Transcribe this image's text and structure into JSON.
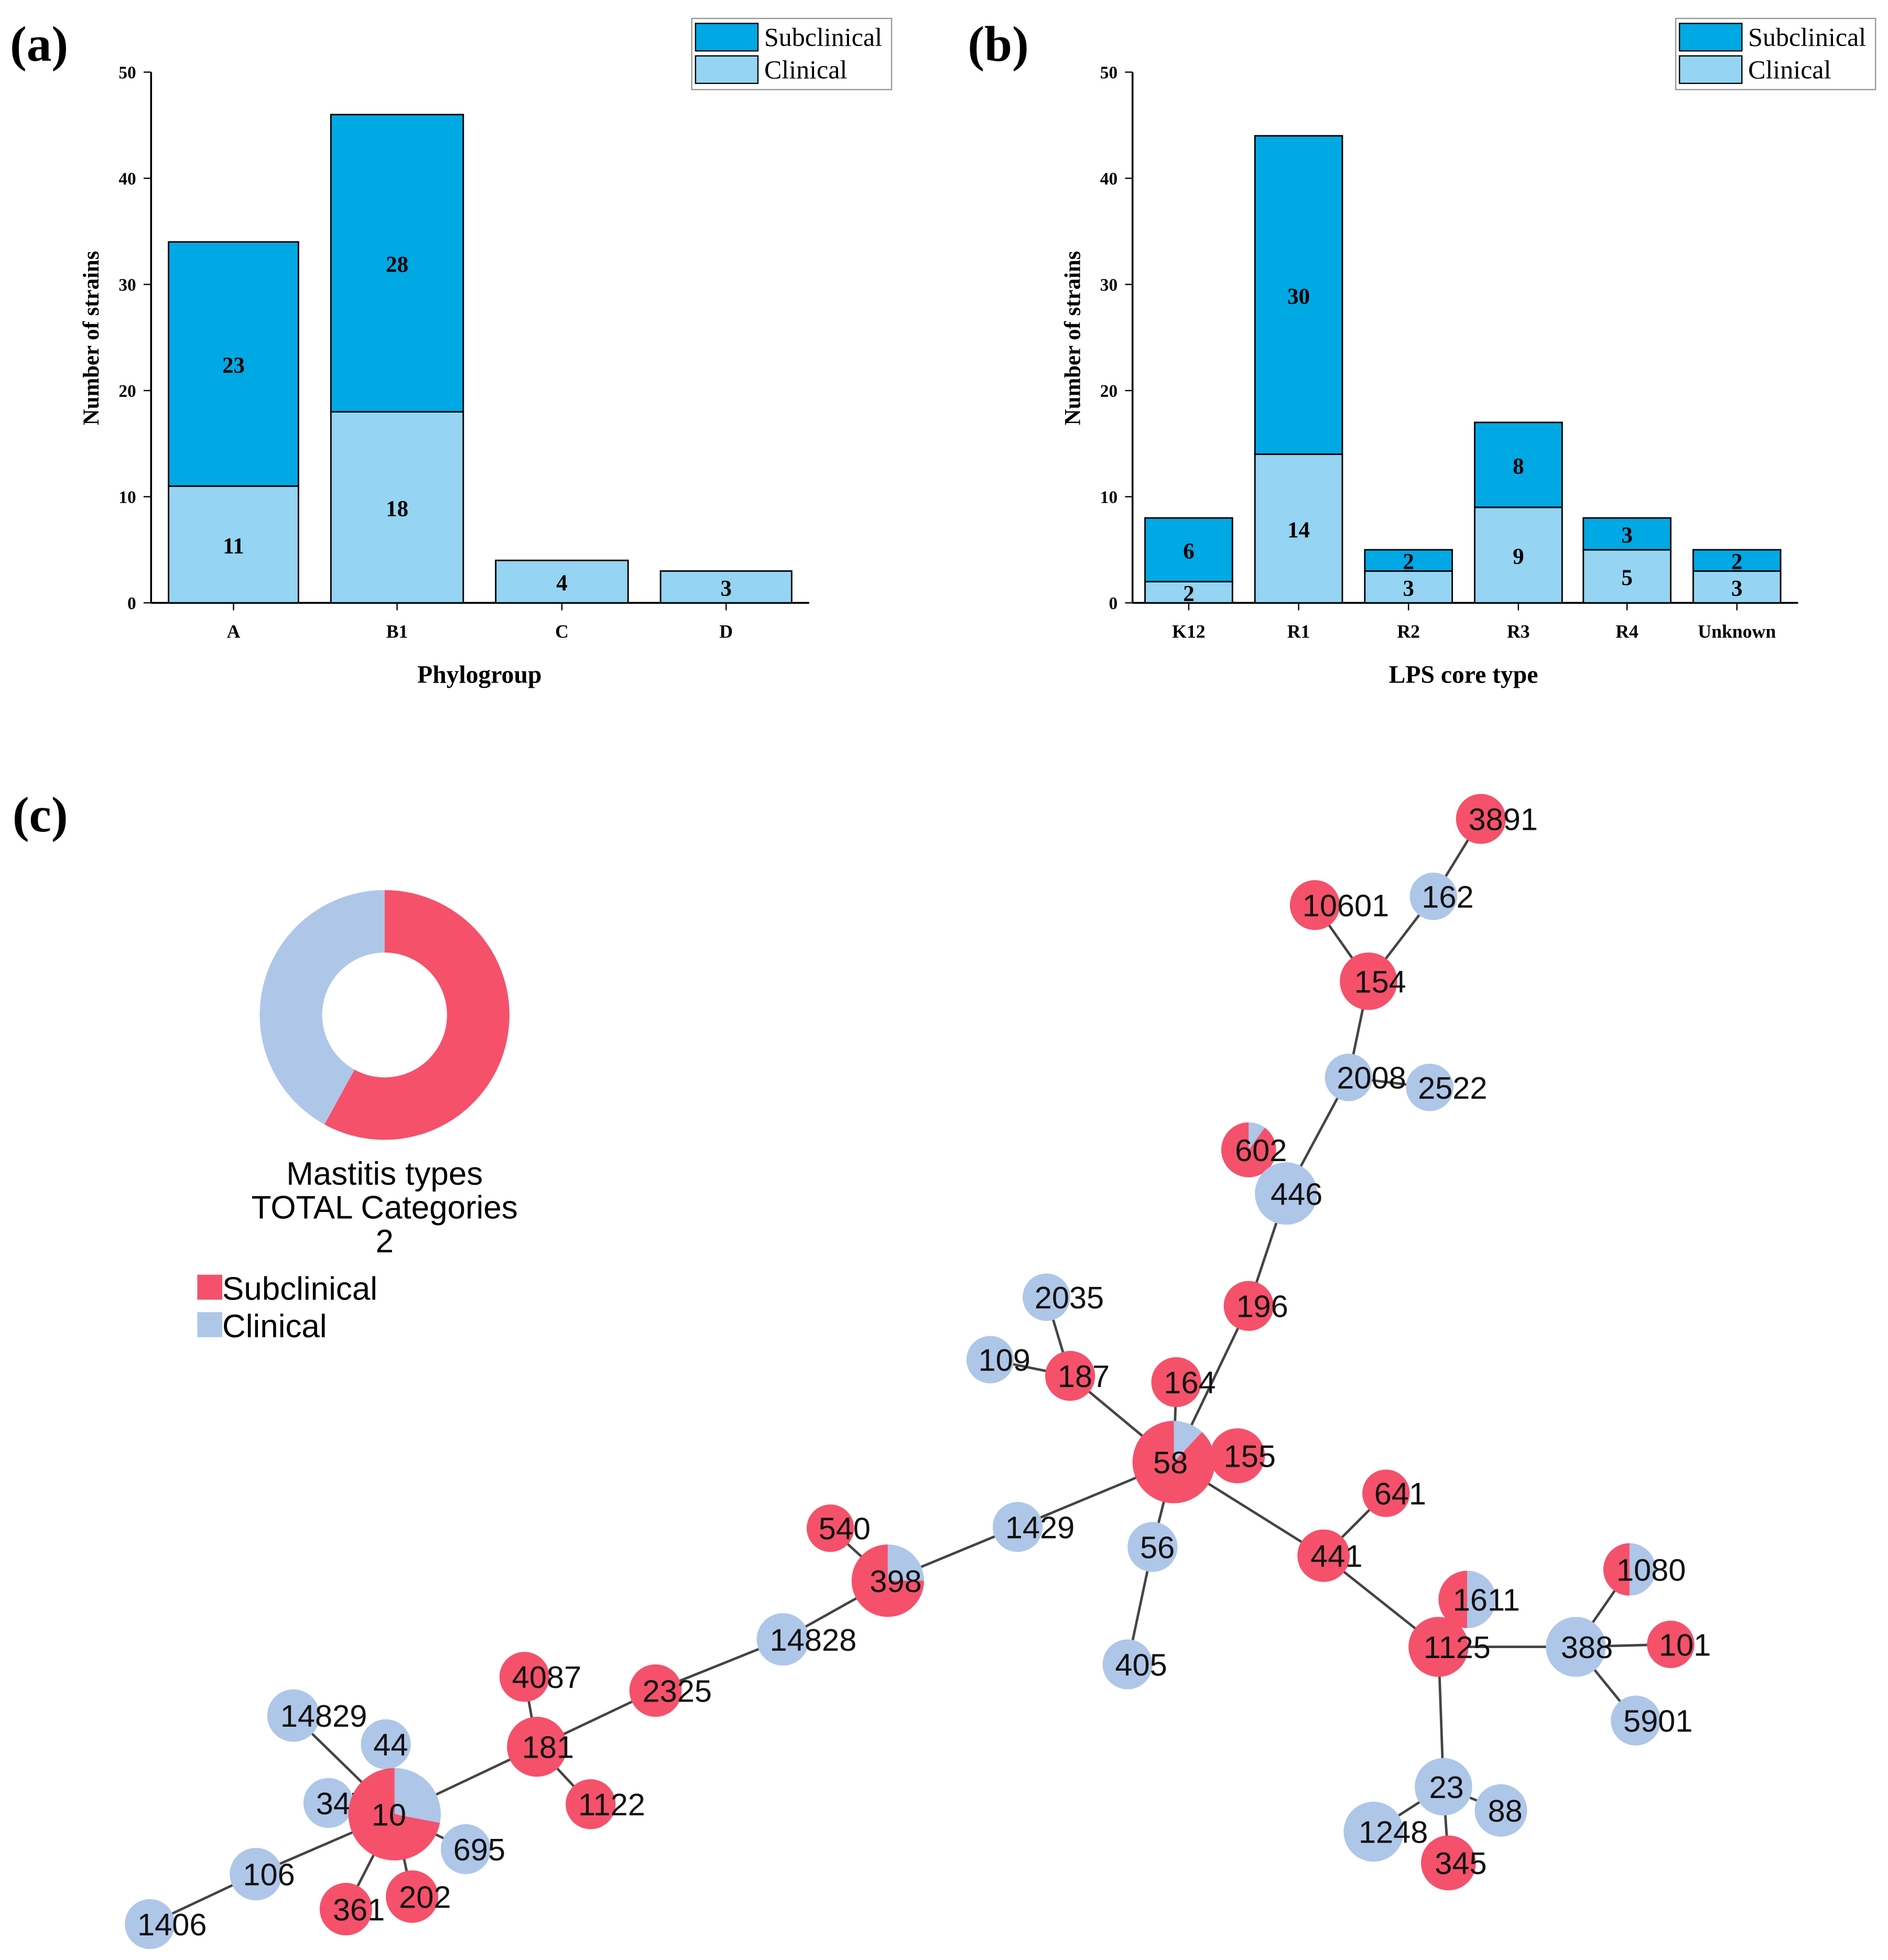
{
  "colors": {
    "subclinical_bar": "#00a8e4",
    "clinical_bar": "#95d4f2",
    "subclinical_node": "#f5516b",
    "clinical_node": "#aec6e8"
  },
  "chart_data": [
    {
      "type": "bar",
      "stacked": true,
      "panel_label": "(a)",
      "xlabel": "Phylogroup",
      "ylabel": "Number of strains",
      "ylim": [
        0,
        50
      ],
      "yticks": [
        "0",
        "10",
        "20",
        "30",
        "40",
        "50"
      ],
      "categories": [
        "A",
        "B1",
        "C",
        "D"
      ],
      "series": [
        {
          "name": "Clinical",
          "values": [
            11,
            18,
            4,
            3
          ],
          "labels": [
            "11",
            "18",
            "4",
            "3"
          ]
        },
        {
          "name": "Subclinical",
          "values": [
            23,
            28,
            0,
            0
          ],
          "labels": [
            "23",
            "28",
            "",
            ""
          ]
        }
      ],
      "legend": [
        "Subclinical",
        "Clinical"
      ],
      "legend_position": "top-right"
    },
    {
      "type": "bar",
      "stacked": true,
      "panel_label": "(b)",
      "xlabel": "LPS core type",
      "ylabel": "Number of strains",
      "ylim": [
        0,
        50
      ],
      "yticks": [
        "0",
        "10",
        "20",
        "30",
        "40",
        "50"
      ],
      "categories": [
        "K12",
        "R1",
        "R2",
        "R3",
        "R4",
        "Unknown"
      ],
      "series": [
        {
          "name": "Clinical",
          "values": [
            2,
            14,
            3,
            9,
            5,
            3
          ],
          "labels": [
            "2",
            "14",
            "3",
            "9",
            "5",
            "3"
          ]
        },
        {
          "name": "Subclinical",
          "values": [
            6,
            30,
            2,
            8,
            3,
            2
          ],
          "labels": [
            "6",
            "30",
            "2",
            "8",
            "3",
            "2"
          ]
        }
      ],
      "legend": [
        "Subclinical",
        "Clinical"
      ],
      "legend_position": "top-right"
    },
    {
      "type": "network",
      "panel_label": "(c)",
      "legend": {
        "title1": "Mastitis types",
        "title2": "TOTAL Categories",
        "count": "2",
        "items": [
          "Subclinical",
          "Clinical"
        ]
      },
      "donut": {
        "subclinical_fraction": 0.58,
        "clinical_fraction": 0.42
      },
      "nodes": [
        {
          "id": "3891",
          "subclinical": 1
        },
        {
          "id": "162",
          "subclinical": 0
        },
        {
          "id": "10601",
          "subclinical": 1
        },
        {
          "id": "154",
          "subclinical": 1
        },
        {
          "id": "2008",
          "subclinical": 0
        },
        {
          "id": "2522",
          "subclinical": 0
        },
        {
          "id": "602",
          "subclinical": 0.9
        },
        {
          "id": "446",
          "subclinical": 0
        },
        {
          "id": "196",
          "subclinical": 1
        },
        {
          "id": "2035",
          "subclinical": 0
        },
        {
          "id": "109",
          "subclinical": 0
        },
        {
          "id": "187",
          "subclinical": 1
        },
        {
          "id": "164",
          "subclinical": 1
        },
        {
          "id": "58",
          "subclinical": 0.88
        },
        {
          "id": "155",
          "subclinical": 1
        },
        {
          "id": "641",
          "subclinical": 1
        },
        {
          "id": "1429",
          "subclinical": 0
        },
        {
          "id": "56",
          "subclinical": 0
        },
        {
          "id": "540",
          "subclinical": 1
        },
        {
          "id": "398",
          "subclinical": 0.75
        },
        {
          "id": "441",
          "subclinical": 1
        },
        {
          "id": "1611",
          "subclinical": 0.5
        },
        {
          "id": "1080",
          "subclinical": 0.5
        },
        {
          "id": "1125",
          "subclinical": 1
        },
        {
          "id": "388",
          "subclinical": 0
        },
        {
          "id": "101",
          "subclinical": 1
        },
        {
          "id": "5901",
          "subclinical": 0
        },
        {
          "id": "405",
          "subclinical": 0
        },
        {
          "id": "14828",
          "subclinical": 0
        },
        {
          "id": "2325",
          "subclinical": 1
        },
        {
          "id": "4087",
          "subclinical": 1
        },
        {
          "id": "181",
          "subclinical": 1
        },
        {
          "id": "1122",
          "subclinical": 1
        },
        {
          "id": "14829",
          "subclinical": 0
        },
        {
          "id": "44",
          "subclinical": 0
        },
        {
          "id": "3476",
          "subclinical": 0
        },
        {
          "id": "10",
          "subclinical": 0.72
        },
        {
          "id": "695",
          "subclinical": 0
        },
        {
          "id": "106",
          "subclinical": 0
        },
        {
          "id": "1406",
          "subclinical": 0
        },
        {
          "id": "361",
          "subclinical": 1
        },
        {
          "id": "202",
          "subclinical": 1
        },
        {
          "id": "23",
          "subclinical": 0
        },
        {
          "id": "88",
          "subclinical": 0
        },
        {
          "id": "1248",
          "subclinical": 0
        },
        {
          "id": "345",
          "subclinical": 1
        }
      ],
      "edges": [
        [
          "3891",
          "162"
        ],
        [
          "162",
          "154"
        ],
        [
          "10601",
          "154"
        ],
        [
          "154",
          "2008"
        ],
        [
          "2008",
          "2522"
        ],
        [
          "2008",
          "446"
        ],
        [
          "602",
          "446"
        ],
        [
          "446",
          "196"
        ],
        [
          "196",
          "58"
        ],
        [
          "164",
          "58"
        ],
        [
          "187",
          "58"
        ],
        [
          "2035",
          "187"
        ],
        [
          "109",
          "187"
        ],
        [
          "155",
          "58"
        ],
        [
          "58",
          "1429"
        ],
        [
          "58",
          "56"
        ],
        [
          "58",
          "441"
        ],
        [
          "1429",
          "398"
        ],
        [
          "540",
          "398"
        ],
        [
          "56",
          "405"
        ],
        [
          "441",
          "641"
        ],
        [
          "441",
          "1125"
        ],
        [
          "1611",
          "1125"
        ],
        [
          "1125",
          "388"
        ],
        [
          "388",
          "1080"
        ],
        [
          "388",
          "101"
        ],
        [
          "388",
          "5901"
        ],
        [
          "1125",
          "23"
        ],
        [
          "23",
          "88"
        ],
        [
          "23",
          "1248"
        ],
        [
          "23",
          "345"
        ],
        [
          "398",
          "14828"
        ],
        [
          "14828",
          "2325"
        ],
        [
          "2325",
          "181"
        ],
        [
          "4087",
          "181"
        ],
        [
          "181",
          "1122"
        ],
        [
          "181",
          "10"
        ],
        [
          "10",
          "14829"
        ],
        [
          "10",
          "44"
        ],
        [
          "10",
          "3476"
        ],
        [
          "10",
          "695"
        ],
        [
          "10",
          "106"
        ],
        [
          "106",
          "1406"
        ],
        [
          "10",
          "361"
        ],
        [
          "10",
          "202"
        ]
      ]
    }
  ]
}
